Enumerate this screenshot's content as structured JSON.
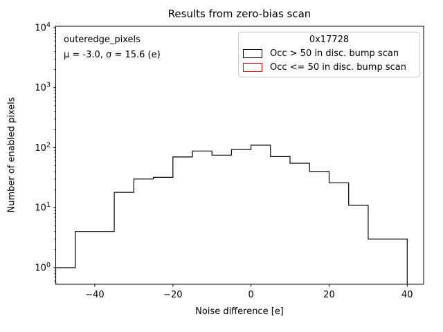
{
  "figure": {
    "title": "Results from zero-bias scan",
    "background_color": "#ffffff",
    "line_color": "#000000"
  },
  "axes": {
    "xlabel": "Noise difference [e]",
    "ylabel": "Number of enabled pixels",
    "x_tick_labels": [
      "−40",
      "−20",
      "0",
      "20",
      "40"
    ],
    "x_tick_values": [
      -40,
      -20,
      0,
      20,
      40
    ],
    "y_tick_base": "10",
    "y_tick_exponents": [
      0,
      1,
      2,
      3,
      4
    ],
    "xlim": [
      -50,
      44.2
    ],
    "ylim_log10": [
      -0.277,
      4.023
    ],
    "yscale": "log",
    "grid": false
  },
  "annotation": {
    "dataset_label": "outeredge_pixels",
    "stats_line": "μ = -3.0, σ = 15.6 (e)"
  },
  "legend": {
    "title": "0x17728",
    "position": "upper right",
    "entries": [
      {
        "label": "Occ > 50 in disc. bump scan",
        "color": "#000000"
      },
      {
        "label": "Occ <= 50 in disc. bump scan",
        "color": "#ff0000"
      }
    ]
  },
  "chart_data": {
    "type": "bar",
    "subtype": "step-histogram",
    "title": "Results from zero-bias scan",
    "xlabel": "Noise difference [e]",
    "ylabel": "Number of enabled pixels",
    "yscale": "log",
    "xlim": [
      -50,
      44.2
    ],
    "ylim": [
      0.53,
      10500
    ],
    "grid": false,
    "legend_position": "upper right",
    "bin_edges": [
      -50,
      -45,
      -40,
      -35,
      -30,
      -25,
      -20,
      -15,
      -10,
      -5,
      0,
      5,
      10,
      15,
      20,
      25,
      30,
      35,
      40
    ],
    "series": [
      {
        "name": "Occ > 50 in disc. bump scan",
        "color": "#000000",
        "counts": [
          1,
          4,
          4,
          18,
          30,
          32,
          70,
          88,
          75,
          93,
          110,
          71,
          55,
          40,
          26,
          11,
          3,
          3
        ]
      },
      {
        "name": "Occ <= 50 in disc. bump scan",
        "color": "#ff0000",
        "counts": [
          0,
          0,
          0,
          0,
          0,
          0,
          0,
          0,
          0,
          0,
          0,
          0,
          0,
          0,
          0,
          0,
          0,
          0
        ]
      }
    ],
    "stats": {
      "mu": -3.0,
      "sigma": 15.6,
      "units": "e"
    }
  }
}
